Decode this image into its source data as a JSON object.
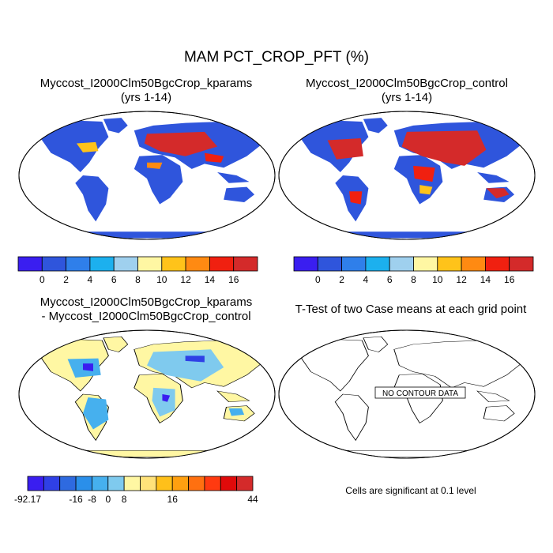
{
  "figure": {
    "title": "MAM PCT_CROP_PFT (%)"
  },
  "panels": [
    {
      "id": "kparams",
      "title_lines": [
        "Myccost_I2000Clm50BgcCrop_kparams",
        "(yrs 1-14)"
      ]
    },
    {
      "id": "control",
      "title_lines": [
        "Myccost_I2000Clm50BgcCrop_control",
        "(yrs 1-14)"
      ]
    },
    {
      "id": "difference",
      "title_lines": [
        "Myccost_I2000Clm50BgcCrop_kparams",
        "- Myccost_I2000Clm50BgcCrop_control"
      ]
    },
    {
      "id": "ttest",
      "title_lines": [
        "T-Test of two Case means at each grid point"
      ],
      "center_label": "NO CONTOUR DATA",
      "note": "Cells are significant at 0.1 level"
    }
  ],
  "colorbars": {
    "abs": {
      "colors": [
        "#3a1ef0",
        "#2f55dc",
        "#2f7fea",
        "#1cb0ee",
        "#9fd0ee",
        "#fff7a3",
        "#ffc31a",
        "#ff8a12",
        "#f02010",
        "#d42a2a"
      ],
      "tick_labels": [
        "0",
        "2",
        "4",
        "6",
        "8",
        "10",
        "12",
        "14",
        "16"
      ]
    },
    "diff": {
      "colors": [
        "#3a1ef0",
        "#2f40e6",
        "#2e6ae0",
        "#2a8fea",
        "#46b0ee",
        "#7fcaee",
        "#fff7a3",
        "#ffe27a",
        "#ffc01a",
        "#ffa010",
        "#ff7010",
        "#ff3a10",
        "#e00a0a",
        "#d42a2a"
      ],
      "tick_labels": [
        "-92.17",
        "-16",
        "-8",
        "0",
        "8",
        "16",
        "44"
      ]
    }
  }
}
